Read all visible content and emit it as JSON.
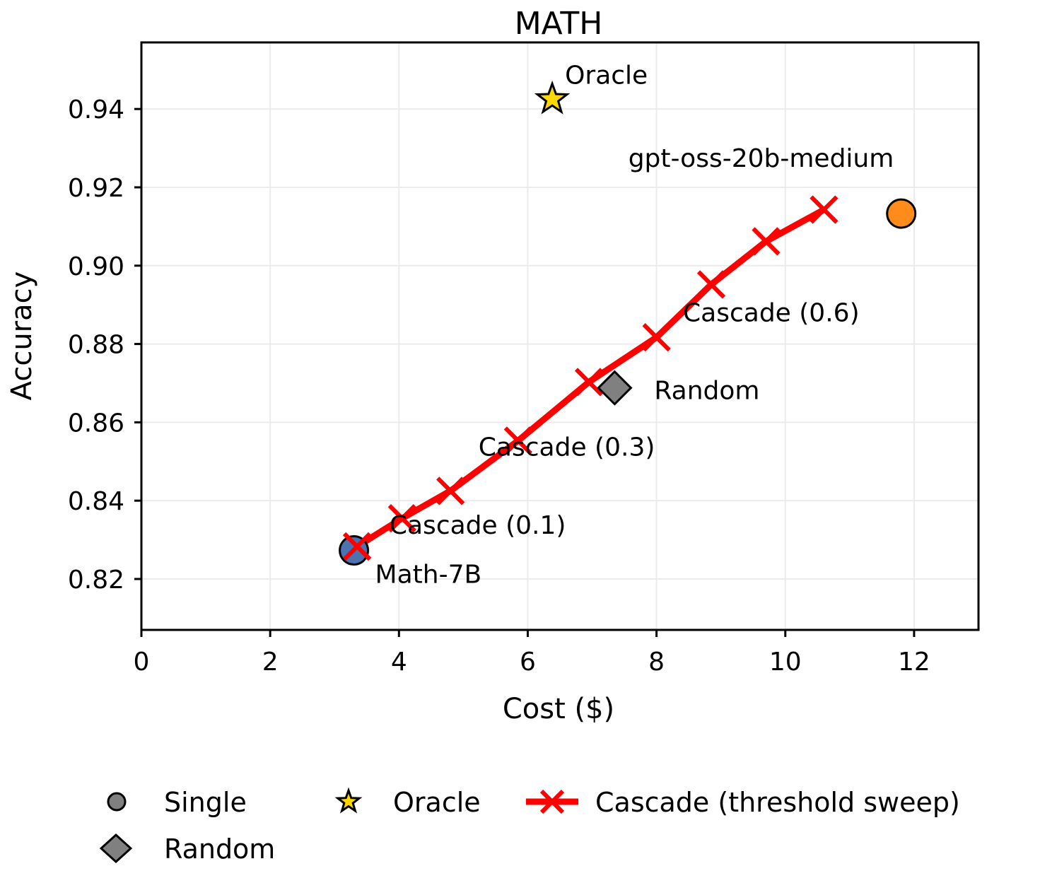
{
  "chart_data": {
    "type": "scatter",
    "title": "MATH",
    "xlabel": "Cost ($)",
    "ylabel": "Accuracy",
    "xlim": [
      0,
      13
    ],
    "ylim": [
      0.807,
      0.957
    ],
    "xticks": [
      0,
      2,
      4,
      6,
      8,
      10,
      12
    ],
    "xtick_labels": [
      "0",
      "2",
      "4",
      "6",
      "8",
      "10",
      "12"
    ],
    "yticks": [
      0.82,
      0.84,
      0.86,
      0.88,
      0.9,
      0.92,
      0.94
    ],
    "ytick_labels": [
      "0.82",
      "0.84",
      "0.86",
      "0.88",
      "0.90",
      "0.92",
      "0.94"
    ],
    "grid": true,
    "colors": {
      "single_small": "#4c72b0",
      "single_large": "#ff8c1a",
      "random": "#808080",
      "oracle": "#ffd700",
      "cascade": "#ff0000"
    },
    "singles": [
      {
        "name": "Math-7B",
        "x": 3.3,
        "y": 0.8273
      },
      {
        "name": "gpt-oss-20b-medium",
        "x": 11.8,
        "y": 0.9133
      }
    ],
    "random": {
      "name": "Random",
      "x": 7.35,
      "y": 0.8688
    },
    "oracle": {
      "name": "Oracle",
      "x": 6.38,
      "y": 0.9425
    },
    "cascade": {
      "name": "Cascade (threshold sweep)",
      "x": [
        3.35,
        4.05,
        4.8,
        5.85,
        6.95,
        8.0,
        8.85,
        9.7,
        10.6
      ],
      "y": [
        0.8283,
        0.8355,
        0.8425,
        0.8553,
        0.8703,
        0.8817,
        0.8952,
        0.9062,
        0.9143
      ]
    },
    "annotations": [
      {
        "text": "Cascade (0.1)",
        "x": 4.05,
        "y": 0.8355
      },
      {
        "text": "Cascade (0.3)",
        "x": 5.85,
        "y": 0.8553
      },
      {
        "text": "Cascade (0.6)",
        "x": 8.85,
        "y": 0.8952
      }
    ],
    "legend": {
      "placement": "bottom",
      "entries": [
        "Single",
        "Oracle",
        "Cascade (threshold sweep)",
        "Random"
      ]
    }
  }
}
